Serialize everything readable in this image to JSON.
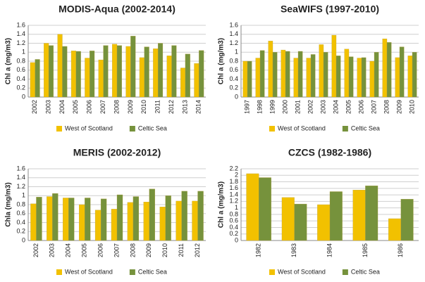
{
  "chart_data": [
    {
      "type": "bar",
      "title": "MODIS-Aqua (2002-2014)",
      "ylabel": "Chl a (mg/m3)",
      "categories": [
        "2002",
        "2003",
        "2004",
        "2005",
        "2006",
        "2007",
        "2008",
        "2009",
        "2010",
        "2011",
        "2012",
        "2013",
        "2014"
      ],
      "series": [
        {
          "name": "West of Scotland",
          "color": "#f2c100",
          "values": [
            0.77,
            1.2,
            1.4,
            1.03,
            0.87,
            0.83,
            1.18,
            1.13,
            0.88,
            1.08,
            0.92,
            0.65,
            0.75
          ]
        },
        {
          "name": "Celtic Sea",
          "color": "#76923c",
          "values": [
            0.84,
            1.15,
            1.13,
            1.02,
            1.03,
            1.15,
            1.15,
            1.36,
            1.12,
            1.2,
            1.15,
            0.96,
            1.04
          ]
        }
      ],
      "ylim": [
        0,
        1.6
      ],
      "yticks": [
        0,
        0.2,
        0.4,
        0.6,
        0.8,
        1,
        1.2,
        1.4,
        1.6
      ],
      "grid": true
    },
    {
      "type": "bar",
      "title": "SeaWIFS (1997-2010)",
      "ylabel": "Chl a (mg/m3)",
      "categories": [
        "1997",
        "1998",
        "1999",
        "2000",
        "2001",
        "2002",
        "2003",
        "2004",
        "2005",
        "2006",
        "2007",
        "2008",
        "2009",
        "2010"
      ],
      "series": [
        {
          "name": "West of Scotland",
          "color": "#f2c100",
          "values": [
            0.8,
            0.87,
            1.25,
            1.05,
            0.87,
            0.87,
            1.17,
            1.38,
            1.07,
            0.87,
            0.8,
            1.3,
            0.88,
            0.92
          ]
        },
        {
          "name": "Celtic Sea",
          "color": "#76923c",
          "values": [
            0.8,
            1.04,
            1.0,
            1.02,
            1.02,
            0.95,
            1.0,
            0.92,
            0.9,
            0.88,
            1.0,
            1.22,
            1.12,
            1.0
          ]
        }
      ],
      "ylim": [
        0,
        1.6
      ],
      "yticks": [
        0,
        0.2,
        0.4,
        0.6,
        0.8,
        1,
        1.2,
        1.4,
        1.6
      ],
      "grid": true
    },
    {
      "type": "bar",
      "title": "MERIS (2002-2012)",
      "ylabel": "Chla (mg/m3)",
      "categories": [
        "2002",
        "2003",
        "2004",
        "2005",
        "2006",
        "2007",
        "2008",
        "2009",
        "2010",
        "2011",
        "2012"
      ],
      "series": [
        {
          "name": "West of Scotland",
          "color": "#f2c100",
          "values": [
            0.82,
            0.98,
            0.95,
            0.8,
            0.68,
            0.7,
            0.85,
            0.86,
            0.75,
            0.88,
            0.88
          ]
        },
        {
          "name": "Celtic Sea",
          "color": "#76923c",
          "values": [
            0.97,
            1.05,
            0.95,
            0.95,
            0.93,
            1.02,
            0.98,
            1.15,
            1.0,
            1.1,
            1.1
          ]
        }
      ],
      "ylim": [
        0,
        1.6
      ],
      "yticks": [
        0,
        0.2,
        0.4,
        0.6,
        0.8,
        1,
        1.2,
        1.4,
        1.6
      ],
      "grid": true
    },
    {
      "type": "bar",
      "title": "CZCS (1982-1986)",
      "ylabel": "Chl a (mg/m3)",
      "categories": [
        "1982",
        "1983",
        "1984",
        "1985",
        "1986"
      ],
      "series": [
        {
          "name": "West of Scotland",
          "color": "#f2c100",
          "values": [
            2.05,
            1.32,
            1.1,
            1.55,
            0.67
          ]
        },
        {
          "name": "Celtic Sea",
          "color": "#76923c",
          "values": [
            1.93,
            1.12,
            1.5,
            1.68,
            1.27
          ]
        }
      ],
      "ylim": [
        0,
        2.2
      ],
      "yticks": [
        0,
        0.2,
        0.4,
        0.6,
        0.8,
        1,
        1.2,
        1.4,
        1.6,
        1.8,
        2,
        2.2
      ],
      "grid": true
    }
  ]
}
